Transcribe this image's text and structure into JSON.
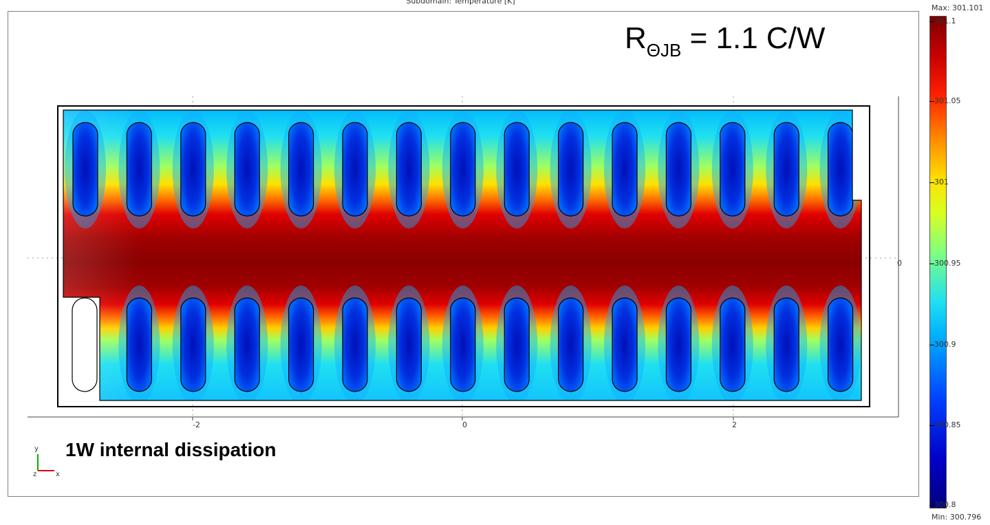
{
  "title": "Subdomain: Temperature [K]",
  "annotations": {
    "resistance_prefix": "R",
    "resistance_sub": "ΘJB",
    "resistance_value": "= 1.1 C/W",
    "dissipation": "1W internal dissipation"
  },
  "axes_triad": {
    "y": "y",
    "z": "z",
    "x": "x"
  },
  "colorbar": {
    "max_label": "Max: 301.101",
    "min_label": "Min: 300.796",
    "ticks": [
      "301.1",
      "301.05",
      "301",
      "300.95",
      "300.9",
      "300.85",
      "300.8"
    ],
    "colormap": "jet"
  },
  "chart_data": {
    "type": "heatmap",
    "title": "Subdomain: Temperature [K]",
    "quantity": "Temperature [K]",
    "x_ticks": [
      "-2",
      "0",
      "2"
    ],
    "y_ticks": [
      "0"
    ],
    "value_range": [
      300.796,
      301.101
    ],
    "hot_region": "central horizontal band",
    "cool_regions": "elongated vias above and below band",
    "via_rows": 2,
    "vias_per_row": 15
  }
}
